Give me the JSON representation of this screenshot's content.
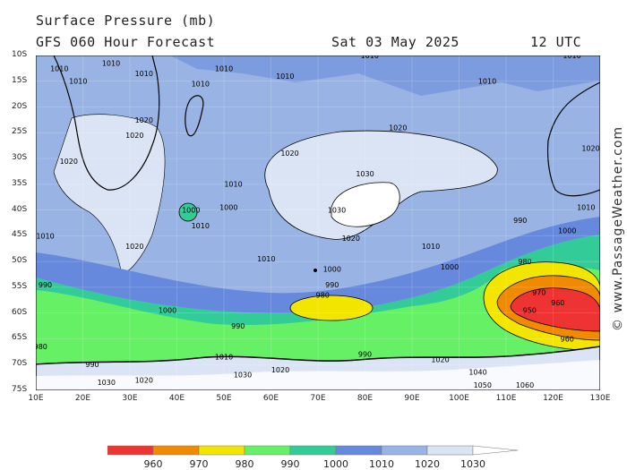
{
  "header": {
    "title": "Surface Pressure (mb)",
    "subtitle": "GFS 060 Hour Forecast",
    "date": "Sat 03 May 2025",
    "time": "12 UTC"
  },
  "watermark": "© www.PassageWeather.com",
  "lat_labels": [
    "10S",
    "15S",
    "20S",
    "25S",
    "30S",
    "35S",
    "40S",
    "45S",
    "50S",
    "55S",
    "60S",
    "65S",
    "70S",
    "75S"
  ],
  "lon_labels": [
    "10E",
    "20E",
    "30E",
    "40E",
    "50E",
    "60E",
    "70E",
    "80E",
    "90E",
    "100E",
    "110E",
    "120E",
    "130E"
  ],
  "legend": {
    "values": [
      "960",
      "970",
      "980",
      "990",
      "1000",
      "1010",
      "1020",
      "1030"
    ],
    "colors": [
      "#ee3333",
      "#f08a00",
      "#f2e600",
      "#66f066",
      "#33cc99",
      "#6688dd",
      "#99b4e4",
      "#dbe4f4",
      "#ffffff"
    ]
  },
  "isobar_labels": [
    {
      "text": "1010",
      "lon": 15,
      "lat": 13
    },
    {
      "text": "1010",
      "lon": 26,
      "lat": 12
    },
    {
      "text": "1010",
      "lon": 19,
      "lat": 15.5
    },
    {
      "text": "1010",
      "lon": 33,
      "lat": 14
    },
    {
      "text": "1010",
      "lon": 45,
      "lat": 16
    },
    {
      "text": "1010",
      "lon": 50,
      "lat": 13
    },
    {
      "text": "1010",
      "lon": 63,
      "lat": 14.5
    },
    {
      "text": "1010",
      "lon": 81,
      "lat": 10.5
    },
    {
      "text": "1010",
      "lon": 106,
      "lat": 15.5
    },
    {
      "text": "1010",
      "lon": 124,
      "lat": 10.5
    },
    {
      "text": "1020",
      "lon": 33,
      "lat": 23
    },
    {
      "text": "1020",
      "lon": 31,
      "lat": 26
    },
    {
      "text": "1020",
      "lon": 17,
      "lat": 31
    },
    {
      "text": "1020",
      "lon": 87,
      "lat": 24.5
    },
    {
      "text": "1020",
      "lon": 64,
      "lat": 29.5
    },
    {
      "text": "1020",
      "lon": 128,
      "lat": 28.5
    },
    {
      "text": "1030",
      "lon": 80,
      "lat": 33.5
    },
    {
      "text": "1030",
      "lon": 74,
      "lat": 40.5
    },
    {
      "text": "1010",
      "lon": 52,
      "lat": 35.5
    },
    {
      "text": "1000",
      "lon": 51,
      "lat": 40
    },
    {
      "text": "1000",
      "lon": 43,
      "lat": 40.5
    },
    {
      "text": "1010",
      "lon": 45,
      "lat": 43.5
    },
    {
      "text": "1010",
      "lon": 12,
      "lat": 45.5
    },
    {
      "text": "1020",
      "lon": 31,
      "lat": 47.5
    },
    {
      "text": "1020",
      "lon": 77,
      "lat": 46
    },
    {
      "text": "1010",
      "lon": 94,
      "lat": 47.5
    },
    {
      "text": "1010",
      "lon": 59,
      "lat": 50
    },
    {
      "text": "1010",
      "lon": 127,
      "lat": 40
    },
    {
      "text": "990",
      "lon": 113,
      "lat": 42.5
    },
    {
      "text": "1000",
      "lon": 123,
      "lat": 44.5
    },
    {
      "text": "980",
      "lon": 114,
      "lat": 50.5
    },
    {
      "text": "1000",
      "lon": 73,
      "lat": 52
    },
    {
      "text": "1000",
      "lon": 98,
      "lat": 51.5
    },
    {
      "text": "990",
      "lon": 12,
      "lat": 55
    },
    {
      "text": "990",
      "lon": 73,
      "lat": 55
    },
    {
      "text": "980",
      "lon": 71,
      "lat": 57
    },
    {
      "text": "970",
      "lon": 117,
      "lat": 56.5
    },
    {
      "text": "960",
      "lon": 121,
      "lat": 58.5
    },
    {
      "text": "950",
      "lon": 115,
      "lat": 60
    },
    {
      "text": "1000",
      "lon": 38,
      "lat": 60
    },
    {
      "text": "990",
      "lon": 53,
      "lat": 63
    },
    {
      "text": "960",
      "lon": 123,
      "lat": 65.5
    },
    {
      "text": "980",
      "lon": 11,
      "lat": 67
    },
    {
      "text": "990",
      "lon": 80,
      "lat": 68.5
    },
    {
      "text": "990",
      "lon": 22,
      "lat": 70.5
    },
    {
      "text": "1010",
      "lon": 50,
      "lat": 69
    },
    {
      "text": "1020",
      "lon": 96,
      "lat": 69.5
    },
    {
      "text": "1040",
      "lon": 104,
      "lat": 72
    },
    {
      "text": "1030",
      "lon": 54,
      "lat": 72.5
    },
    {
      "text": "1020",
      "lon": 62,
      "lat": 71.5
    },
    {
      "text": "1030",
      "lon": 25,
      "lat": 74
    },
    {
      "text": "1020",
      "lon": 33,
      "lat": 73.5
    },
    {
      "text": "1050",
      "lon": 105,
      "lat": 74.5
    },
    {
      "text": "1060",
      "lon": 114,
      "lat": 74.5
    }
  ]
}
